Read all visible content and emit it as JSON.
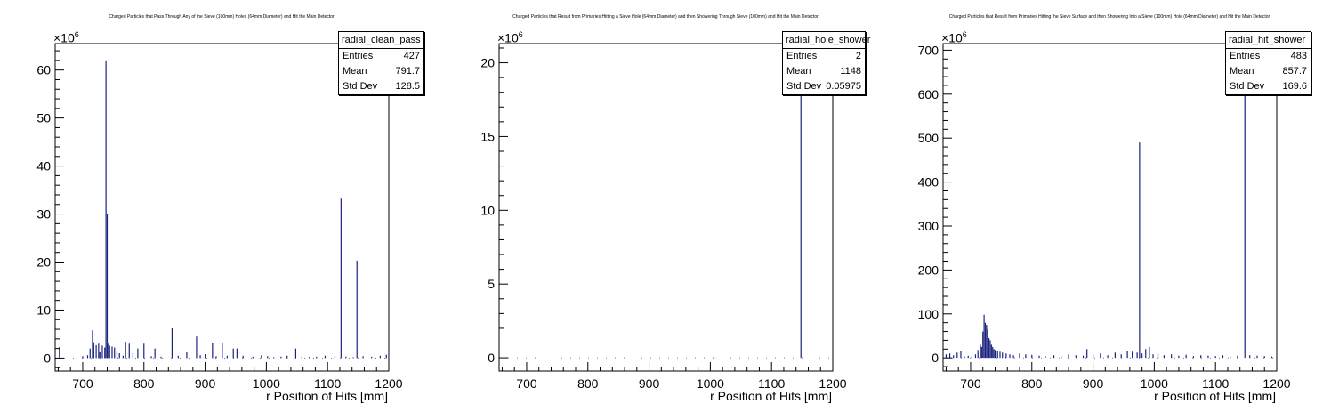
{
  "chart_data": [
    {
      "type": "bar",
      "title": "Charged Particles that Pass Through Any of the Sieve (100mm) Holes (64mm Diameter) and Hit the Main Detector",
      "xlabel": "r Position of Hits [mm]",
      "ylabel": "",
      "y_exponent_base": "×10",
      "y_exponent": "6",
      "xlim": [
        655,
        1200
      ],
      "ylim": [
        -2.7,
        65.5
      ],
      "xticks": [
        700,
        800,
        900,
        1000,
        1100,
        1200
      ],
      "yticks": [
        0,
        10,
        20,
        30,
        40,
        50,
        60
      ],
      "stats": {
        "name": "radial_clean_pass",
        "rows": [
          {
            "label": "Entries",
            "value": "427"
          },
          {
            "label": "Mean",
            "value": "791.7"
          },
          {
            "label": "Std Dev",
            "value": "128.5"
          }
        ]
      },
      "x": [
        662,
        700,
        708,
        712,
        716,
        718,
        722,
        726,
        728,
        732,
        736,
        738,
        740,
        742,
        744,
        748,
        752,
        756,
        760,
        766,
        770,
        776,
        782,
        790,
        800,
        812,
        818,
        828,
        846,
        856,
        870,
        886,
        892,
        900,
        912,
        918,
        928,
        936,
        946,
        952,
        962,
        978,
        992,
        1002,
        1012,
        1024,
        1034,
        1048,
        1058,
        1070,
        1082,
        1096,
        1112,
        1122,
        1130,
        1142,
        1148,
        1158,
        1172,
        1186,
        1196
      ],
      "values": [
        2.3,
        0.4,
        0.6,
        2.0,
        5.8,
        3.3,
        2.7,
        3.0,
        1.2,
        2.6,
        2.2,
        62,
        30,
        3,
        2.6,
        2.4,
        2.2,
        1.3,
        1.0,
        0.5,
        3.4,
        3.0,
        1.0,
        2.0,
        3.0,
        0.4,
        2.0,
        0.3,
        6.2,
        0.5,
        1.2,
        4.5,
        0.6,
        0.8,
        3.2,
        0.4,
        3.1,
        0.5,
        2.0,
        2.0,
        0.5,
        0.3,
        0.6,
        0.4,
        0.2,
        0.3,
        0.5,
        2.0,
        0.3,
        0.2,
        0.3,
        0.5,
        0.4,
        33.2,
        0.3,
        0.2,
        20.3,
        0.4,
        0.3,
        0.5,
        0.7
      ]
    },
    {
      "type": "bar",
      "title": "Charged Particles that Result from Primaries Hitting a Sieve Hole (64mm Diameter) and then Showering Through Sieve (100mm) and Hit the Main Detector",
      "xlabel": "r Position of Hits [mm]",
      "ylabel": "",
      "y_exponent_base": "×10",
      "y_exponent": "6",
      "xlim": [
        655,
        1200
      ],
      "ylim": [
        -0.9,
        21.3
      ],
      "xticks": [
        700,
        800,
        900,
        1000,
        1100,
        1200
      ],
      "yticks": [
        0,
        5,
        10,
        15,
        20
      ],
      "stats": {
        "name": "radial_hole_shower",
        "rows": [
          {
            "label": "Entries",
            "value": "2"
          },
          {
            "label": "Mean",
            "value": "1148"
          },
          {
            "label": "Std Dev",
            "value": "0.05975"
          }
        ]
      },
      "x": [
        1006,
        1148
      ],
      "values": [
        0.05,
        21.3
      ]
    },
    {
      "type": "bar",
      "title": "Charged Particles that Result from Primaries Hitting the Sieve Surface and then Showering Into a Sieve (100mm) Hole (64mm Diameter) and Hit the Main Detector",
      "xlabel": "r Position of Hits [mm]",
      "ylabel": "",
      "y_exponent_base": "×10",
      "y_exponent": "6",
      "xlim": [
        655,
        1200
      ],
      "ylim": [
        -30,
        715
      ],
      "xticks": [
        700,
        800,
        900,
        1000,
        1100,
        1200
      ],
      "yticks": [
        0,
        100,
        200,
        300,
        400,
        500,
        600,
        700
      ],
      "stats": {
        "name": "radial_hit_shower",
        "rows": [
          {
            "label": "Entries",
            "value": "483"
          },
          {
            "label": "Mean",
            "value": "857.7"
          },
          {
            "label": "Std Dev",
            "value": "169.6"
          }
        ]
      },
      "x": [
        660,
        666,
        672,
        678,
        684,
        690,
        696,
        702,
        708,
        712,
        716,
        718,
        720,
        722,
        724,
        726,
        728,
        730,
        732,
        734,
        736,
        738,
        740,
        744,
        748,
        752,
        758,
        764,
        770,
        780,
        790,
        800,
        812,
        822,
        836,
        848,
        860,
        872,
        884,
        890,
        900,
        912,
        924,
        936,
        946,
        956,
        964,
        972,
        976,
        980,
        986,
        992,
        998,
        1006,
        1016,
        1028,
        1040,
        1052,
        1064,
        1076,
        1088,
        1100,
        1112,
        1124,
        1136,
        1148,
        1156,
        1168,
        1180,
        1192
      ],
      "values": [
        8,
        10,
        6,
        12,
        16,
        3,
        5,
        4,
        8,
        18,
        30,
        25,
        60,
        98,
        80,
        75,
        65,
        45,
        40,
        30,
        25,
        20,
        18,
        15,
        14,
        12,
        10,
        8,
        6,
        10,
        8,
        7,
        5,
        4,
        6,
        3,
        8,
        6,
        5,
        20,
        8,
        10,
        6,
        12,
        8,
        15,
        14,
        12,
        490,
        10,
        20,
        25,
        8,
        10,
        6,
        8,
        5,
        7,
        4,
        6,
        5,
        4,
        6,
        3,
        5,
        700,
        6,
        5,
        4,
        3
      ]
    }
  ],
  "colors": {
    "bars": "#1a237e",
    "axis": "#000000",
    "background": "#ffffff"
  }
}
